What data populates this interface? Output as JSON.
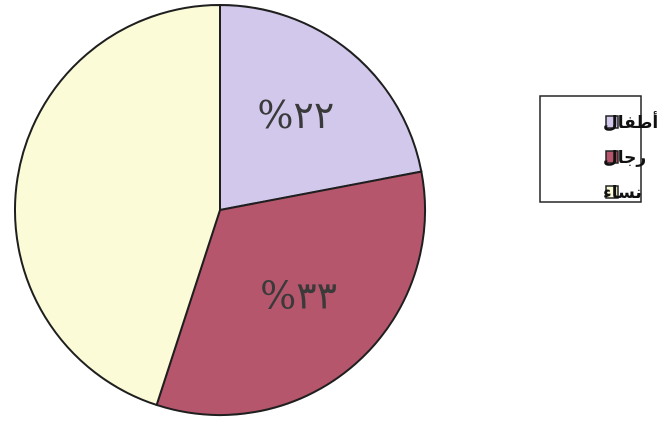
{
  "chart_data": {
    "type": "pie",
    "series": [
      {
        "name": "أطفال",
        "value": 22,
        "label": "%٢٢",
        "color": "#d2c8ec"
      },
      {
        "name": "رجال",
        "value": 33,
        "label": "%٣٣",
        "color": "#b5566c"
      },
      {
        "name": "نساء",
        "value": 45,
        "label": "",
        "color": "#fbfbd8"
      }
    ],
    "legend_position": "right"
  }
}
